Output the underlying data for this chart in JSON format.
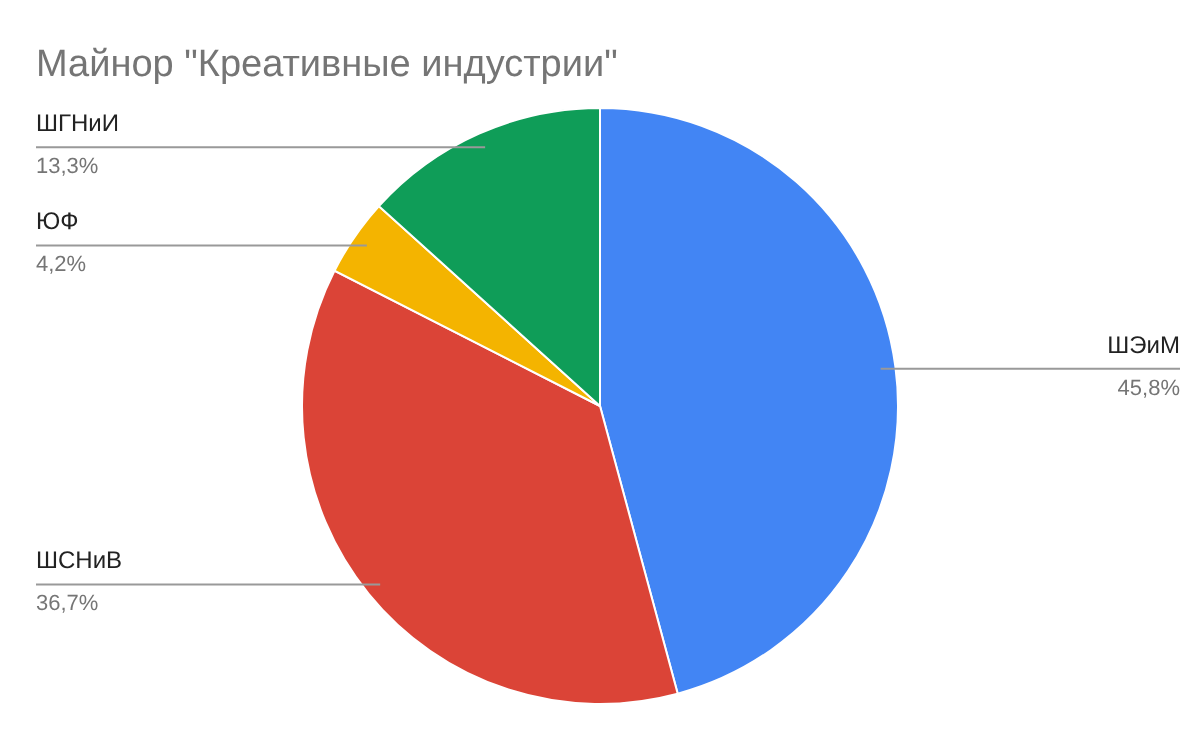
{
  "chart_data": {
    "type": "pie",
    "title": "Майнор \"Креативные индустрии\"",
    "categories": [
      "ШЭиМ",
      "ШСНиВ",
      "ЮФ",
      "ШГНиИ"
    ],
    "values": [
      45.8,
      36.7,
      4.2,
      13.3
    ],
    "colors": [
      "#4285f4",
      "#db4437",
      "#f4b400",
      "#0f9d58"
    ],
    "value_labels": [
      "45,8%",
      "36,7%",
      "4,2%",
      "13,3%"
    ]
  }
}
